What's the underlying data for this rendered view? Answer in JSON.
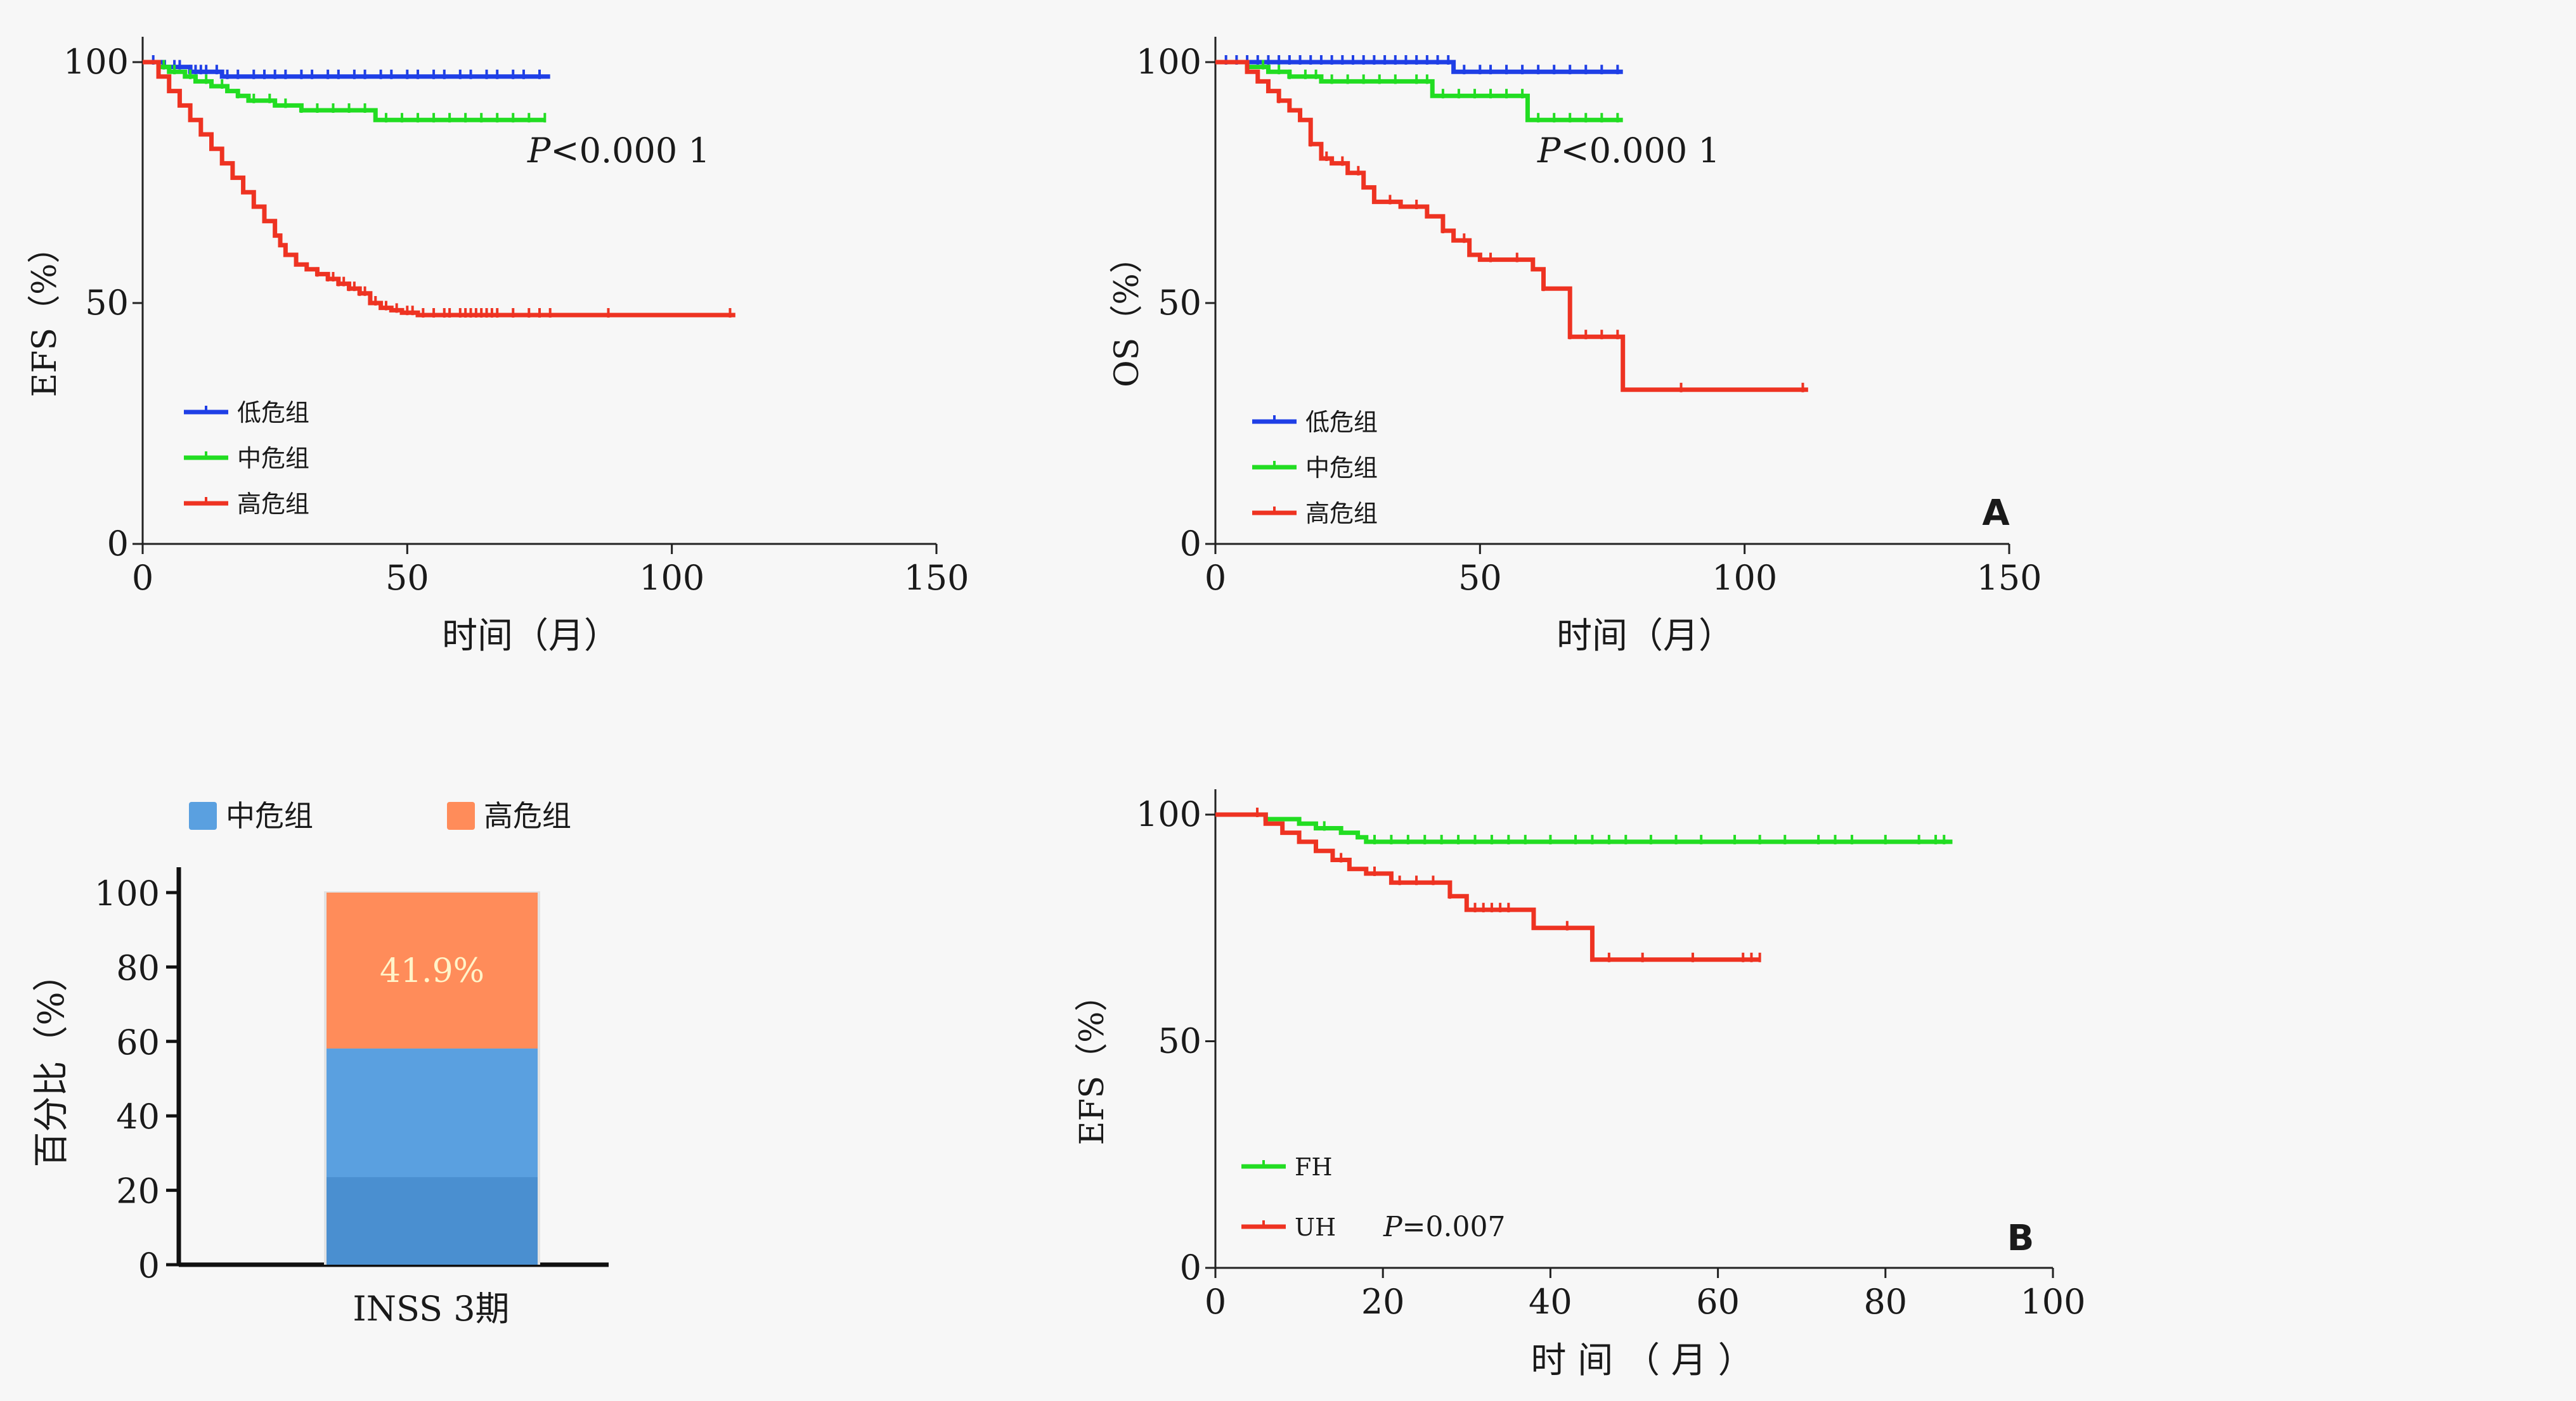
{
  "chart_data": [
    {
      "type": "line",
      "subtype": "kaplan-meier",
      "xlabel": "时间（月）",
      "ylabel": "EFS（%）",
      "xlim": [
        0,
        150
      ],
      "ylim": [
        0,
        100
      ],
      "xticks": [
        0,
        50,
        100,
        150
      ],
      "yticks": [
        0,
        50,
        100
      ],
      "xtick_labels": [
        "0",
        "50",
        "100",
        "150"
      ],
      "ytick_labels": [
        "0",
        "50",
        "100"
      ],
      "annotation": "P<0.000 1",
      "annotation_prefix": "P",
      "annotation_suffix": "<0.000 1",
      "legend_position": "bottom-left",
      "series": [
        {
          "name": "低危组",
          "color": "#1f3fe6",
          "x": [
            0,
            2,
            4,
            6,
            9,
            12,
            15,
            18,
            20,
            77
          ],
          "y": [
            100,
            100,
            99,
            99,
            98,
            98,
            97,
            97,
            97,
            97
          ],
          "censor_x": [
            2,
            4,
            6,
            7,
            9,
            10,
            11,
            12,
            14,
            16,
            18,
            21,
            23,
            25,
            27,
            30,
            32,
            35,
            37,
            40,
            42,
            45,
            47,
            50,
            52,
            55,
            57,
            60,
            62,
            65,
            67,
            70,
            72,
            75
          ]
        },
        {
          "name": "中危组",
          "color": "#22dd22",
          "x": [
            0,
            3,
            5,
            8,
            10,
            13,
            16,
            18,
            20,
            25,
            30,
            40,
            44,
            50,
            76
          ],
          "y": [
            100,
            99,
            98,
            97,
            96,
            95,
            94,
            93,
            92,
            91,
            90,
            90,
            88,
            88,
            88
          ],
          "censor_x": [
            4,
            6,
            9,
            12,
            15,
            18,
            21,
            24,
            27,
            30,
            33,
            36,
            39,
            42,
            46,
            49,
            52,
            55,
            58,
            61,
            64,
            67,
            70,
            73,
            76
          ]
        },
        {
          "name": "高危组",
          "color": "#ee3322",
          "x": [
            0,
            3,
            5,
            7,
            9,
            11,
            13,
            15,
            17,
            19,
            21,
            23,
            25,
            26,
            27,
            29,
            31,
            33,
            35,
            37,
            39,
            41,
            43,
            45,
            47,
            49,
            50,
            52,
            55,
            60,
            70,
            80,
            112
          ],
          "y": [
            100,
            97,
            94,
            91,
            88,
            85,
            82,
            79,
            76,
            73,
            70,
            67,
            64,
            62,
            60,
            58,
            57,
            56,
            55,
            54,
            53,
            52,
            50,
            49,
            48.5,
            48,
            48,
            47.5,
            47.5,
            47.5,
            47.5,
            47.5,
            47.5
          ],
          "censor_x": [
            33,
            35,
            36,
            37,
            38,
            39,
            40,
            41,
            42,
            44,
            46,
            48,
            50,
            51,
            53,
            55,
            57,
            58,
            60,
            61,
            62,
            63,
            64,
            65,
            66,
            67,
            70,
            73,
            75,
            77,
            88,
            111
          ]
        }
      ]
    },
    {
      "type": "line",
      "subtype": "kaplan-meier",
      "xlabel": "时间（月）",
      "ylabel": "OS（%）",
      "xlim": [
        0,
        150
      ],
      "ylim": [
        0,
        100
      ],
      "xticks": [
        0,
        50,
        100,
        150
      ],
      "yticks": [
        0,
        50,
        100
      ],
      "xtick_labels": [
        "0",
        "50",
        "100",
        "150"
      ],
      "ytick_labels": [
        "0",
        "50",
        "100"
      ],
      "annotation": "P<0.000 1",
      "annotation_prefix": "P",
      "annotation_suffix": "<0.000 1",
      "panel_label": "A",
      "legend_position": "bottom-left",
      "series": [
        {
          "name": "低危组",
          "color": "#1f3fe6",
          "x": [
            0,
            44,
            45,
            77
          ],
          "y": [
            100,
            100,
            98,
            98
          ],
          "censor_x": [
            2,
            4,
            6,
            8,
            10,
            12,
            14,
            16,
            18,
            20,
            22,
            24,
            26,
            28,
            30,
            32,
            34,
            36,
            38,
            40,
            42,
            44,
            47,
            50,
            52,
            55,
            58,
            61,
            64,
            67,
            70,
            73,
            76
          ]
        },
        {
          "name": "中危组",
          "color": "#22dd22",
          "x": [
            0,
            6,
            10,
            14,
            20,
            40,
            41,
            58,
            59,
            77
          ],
          "y": [
            100,
            99,
            98,
            97,
            96,
            96,
            93,
            93,
            88,
            88
          ],
          "censor_x": [
            6,
            9,
            12,
            14,
            17,
            19,
            22,
            25,
            28,
            31,
            34,
            38,
            40,
            43,
            46,
            49,
            52,
            55,
            58,
            61,
            64,
            67,
            70,
            73,
            76
          ]
        },
        {
          "name": "高危组",
          "color": "#ee3322",
          "x": [
            0,
            6,
            8,
            10,
            12,
            14,
            16,
            18,
            20,
            22,
            25,
            28,
            30,
            35,
            40,
            43,
            45,
            48,
            50,
            55,
            60,
            62,
            65,
            67,
            70,
            77,
            112
          ],
          "y": [
            100,
            98,
            96,
            94,
            92,
            90,
            88,
            83,
            80,
            79,
            77,
            74,
            71,
            70,
            68,
            65,
            63,
            60,
            59,
            59,
            57,
            53,
            53,
            43,
            43,
            32,
            32
          ],
          "censor_x": [
            12,
            18,
            21,
            24,
            27,
            33,
            38,
            43,
            47,
            52,
            57,
            62,
            67,
            70,
            73,
            76,
            88,
            111
          ]
        }
      ]
    },
    {
      "type": "bar",
      "subtype": "stacked",
      "categories": [
        "INSS 3期"
      ],
      "ylabel": "百分比（%）",
      "ylim": [
        0,
        100
      ],
      "yticks": [
        0,
        20,
        40,
        60,
        80,
        100
      ],
      "ytick_labels": [
        "0",
        "20",
        "40",
        "60",
        "80",
        "100"
      ],
      "legend_position": "top",
      "series": [
        {
          "name": "中危组",
          "color": "#5aa0e0",
          "values": [
            58.1
          ]
        },
        {
          "name": "高危组",
          "color": "#ff8c5a",
          "values": [
            41.9
          ],
          "data_label": "41.9%"
        }
      ]
    },
    {
      "type": "line",
      "subtype": "kaplan-meier",
      "xlabel": "时 间 （ 月 ）",
      "ylabel": "EFS（%）",
      "xlim": [
        0,
        100
      ],
      "ylim": [
        0,
        100
      ],
      "xticks": [
        0,
        20,
        40,
        60,
        80,
        100
      ],
      "yticks": [
        0,
        50,
        100
      ],
      "xtick_labels": [
        "0",
        "20",
        "40",
        "60",
        "80",
        "100"
      ],
      "ytick_labels": [
        "0",
        "50",
        "100"
      ],
      "annotation": "P=0.007",
      "annotation_prefix": "P",
      "annotation_suffix": "=0.007",
      "panel_label": "B",
      "legend_position": "bottom-left",
      "series": [
        {
          "name": "FH",
          "color": "#22dd22",
          "x": [
            0,
            6,
            10,
            12,
            15,
            17,
            18,
            88
          ],
          "y": [
            100,
            99,
            98,
            97,
            96,
            95,
            94,
            94
          ],
          "censor_x": [
            13,
            19,
            21,
            23,
            25,
            27,
            29,
            31,
            33,
            35,
            37,
            40,
            43,
            45,
            47,
            49,
            52,
            55,
            58,
            62,
            65,
            68,
            72,
            74,
            76,
            80,
            84,
            86,
            87
          ]
        },
        {
          "name": "UH",
          "color": "#ee3322",
          "x": [
            0,
            6,
            8,
            10,
            12,
            14,
            16,
            18,
            21,
            28,
            30,
            38,
            45,
            65
          ],
          "y": [
            100,
            98,
            96,
            94,
            92,
            90,
            88,
            87,
            85,
            82,
            79,
            75,
            68,
            68
          ],
          "censor_x": [
            5,
            15,
            19,
            22,
            24,
            26,
            28,
            31,
            32,
            33,
            34,
            35,
            42,
            47,
            51,
            57,
            63,
            64,
            65
          ]
        }
      ]
    }
  ]
}
